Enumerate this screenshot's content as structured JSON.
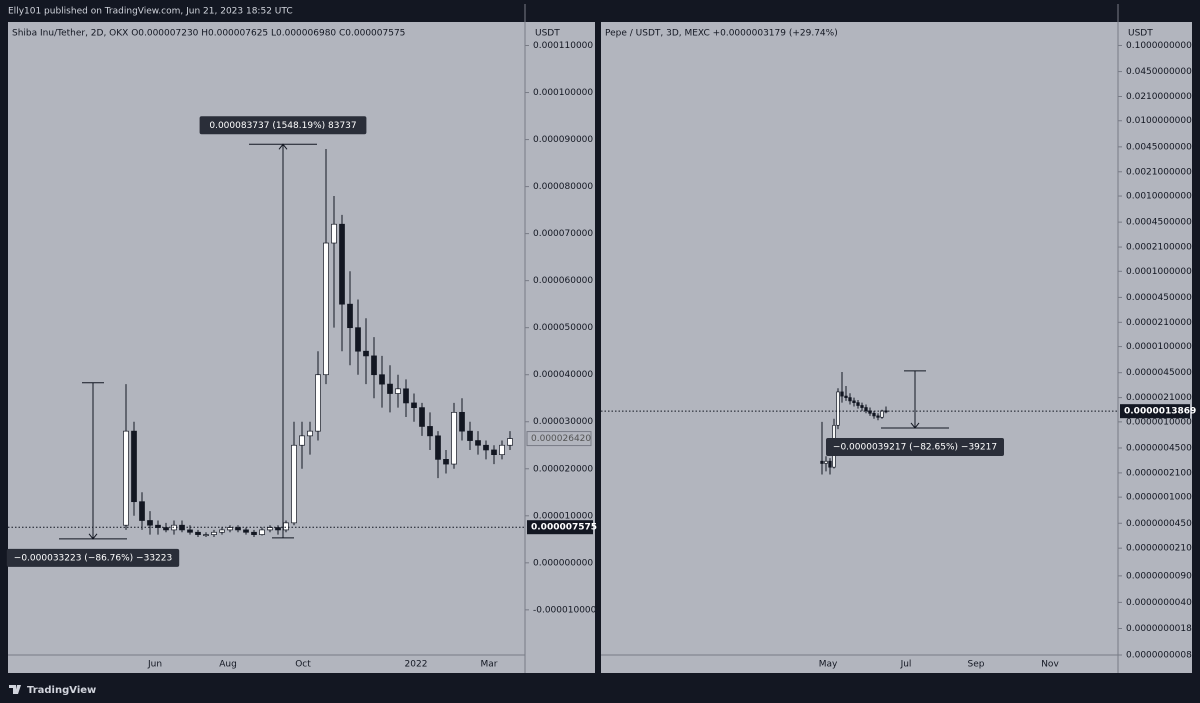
{
  "header": "Elly101 published on TradingView.com, Jun 21, 2023 18:52 UTC",
  "footer": "TradingView",
  "chart_data": [
    {
      "type": "candlestick",
      "title": "Shiba Inu/Tether, 2D, OKX  O0.000007230  H0.000007625  L0.000006980  C0.000007575",
      "axis_label": "USDT",
      "log_scale": false,
      "ylim": [
        -1.96e-05,
        0.000115
      ],
      "yticks": [
        {
          "value": -1e-05,
          "label": "-0.000010000"
        },
        {
          "value": 0,
          "label": "0.000000000"
        },
        {
          "value": 1e-05,
          "label": "0.000010000"
        },
        {
          "value": 2e-05,
          "label": "0.000020000"
        },
        {
          "value": 3e-05,
          "label": "0.000030000"
        },
        {
          "value": 4e-05,
          "label": "0.000040000"
        },
        {
          "value": 5e-05,
          "label": "0.000050000"
        },
        {
          "value": 6e-05,
          "label": "0.000060000"
        },
        {
          "value": 7e-05,
          "label": "0.000070000"
        },
        {
          "value": 8e-05,
          "label": "0.000080000"
        },
        {
          "value": 9e-05,
          "label": "0.000090000"
        },
        {
          "value": 0.0001,
          "label": "0.000100000"
        },
        {
          "value": 0.00011,
          "label": "0.000110000"
        }
      ],
      "xticks": [
        "Jun",
        "Aug",
        "Oct",
        "2022",
        "Mar"
      ],
      "open": [
        8e-06,
        2.8e-05,
        1.3e-05,
        9e-06,
        8e-06,
        7.5e-06,
        7e-06,
        8e-06,
        7e-06,
        6.5e-06,
        6e-06,
        6e-06,
        6.5e-06,
        7e-06,
        7.5e-06,
        7e-06,
        6.5e-06,
        6e-06,
        7e-06,
        7.5e-06,
        7e-06,
        8.5e-06,
        2.5e-05,
        2.7e-05,
        2.8e-05,
        4e-05,
        6.8e-05,
        7.2e-05,
        5.5e-05,
        5e-05,
        4.5e-05,
        4.4e-05,
        4e-05,
        3.8e-05,
        3.6e-05,
        3.7e-05,
        3.4e-05,
        3.3e-05,
        2.9e-05,
        2.7e-05,
        2.2e-05,
        2.1e-05,
        3.2e-05,
        2.8e-05,
        2.6e-05,
        2.5e-05,
        2.4e-05,
        2.3e-05,
        2.5e-05
      ],
      "high": [
        3.8e-05,
        3e-05,
        1.5e-05,
        1.1e-05,
        9e-06,
        8.5e-06,
        9e-06,
        9e-06,
        8e-06,
        7e-06,
        6.5e-06,
        7e-06,
        7.5e-06,
        8e-06,
        8e-06,
        7.5e-06,
        7e-06,
        7.5e-06,
        8e-06,
        8e-06,
        9e-06,
        3e-05,
        3e-05,
        3e-05,
        4.5e-05,
        8.8e-05,
        7.8e-05,
        7.4e-05,
        6.2e-05,
        5.6e-05,
        5.2e-05,
        4.8e-05,
        4.4e-05,
        4.2e-05,
        4e-05,
        3.9e-05,
        3.6e-05,
        3.4e-05,
        3.2e-05,
        2.8e-05,
        2.4e-05,
        3.4e-05,
        3.5e-05,
        3e-05,
        2.8e-05,
        2.6e-05,
        2.5e-05,
        2.6e-05,
        2.8e-05
      ],
      "low": [
        7e-06,
        1e-05,
        7e-06,
        6e-06,
        6e-06,
        6.5e-06,
        6e-06,
        6.5e-06,
        6e-06,
        5.5e-06,
        5.5e-06,
        5.5e-06,
        6e-06,
        6.5e-06,
        6.5e-06,
        6e-06,
        5.5e-06,
        5.8e-06,
        6.5e-06,
        6e-06,
        6.5e-06,
        8e-06,
        2e-05,
        2.3e-05,
        2.6e-05,
        3.8e-05,
        5e-05,
        4.5e-05,
        4.2e-05,
        4e-05,
        3.8e-05,
        3.5e-05,
        3.3e-05,
        3.2e-05,
        3.3e-05,
        3.1e-05,
        3e-05,
        2.7e-05,
        2.4e-05,
        1.8e-05,
        1.9e-05,
        2e-05,
        2.6e-05,
        2.4e-05,
        2.3e-05,
        2.2e-05,
        2.1e-05,
        2.2e-05,
        2.4e-05
      ],
      "close": [
        2.8e-05,
        1.3e-05,
        9e-06,
        8e-06,
        7.5e-06,
        7e-06,
        8e-06,
        7e-06,
        6.5e-06,
        6e-06,
        6e-06,
        6.5e-06,
        7e-06,
        7.5e-06,
        7e-06,
        6.5e-06,
        6e-06,
        7e-06,
        7.5e-06,
        7e-06,
        8.5e-06,
        2.5e-05,
        2.7e-05,
        2.8e-05,
        4e-05,
        6.8e-05,
        7.2e-05,
        5.5e-05,
        5e-05,
        4.5e-05,
        4.4e-05,
        4e-05,
        3.8e-05,
        3.6e-05,
        3.7e-05,
        3.4e-05,
        3.3e-05,
        2.9e-05,
        2.7e-05,
        2.2e-05,
        2.1e-05,
        3.2e-05,
        2.8e-05,
        2.6e-05,
        2.5e-05,
        2.4e-05,
        2.3e-05,
        2.5e-05,
        2.642e-05
      ],
      "last_bar": {
        "value": 2.642e-05,
        "label": "0.000026420"
      },
      "price_line": {
        "value": 7.575e-06,
        "label": "0.000007575"
      },
      "measures": [
        {
          "label": "−0.000033223 (−86.76%) −33223",
          "from": 3.83e-05,
          "to": 5.1e-06
        },
        {
          "label": "0.000083737 (1548.19%) 83737",
          "from": 5.3e-06,
          "to": 8.9e-05
        }
      ]
    },
    {
      "type": "candlestick",
      "title": "Pepe / USDT, 3D, MEXC  +0.0000003179 (+29.74%)",
      "axis_label": "USDT",
      "log_scale": true,
      "ylim": [
        8e-10,
        0.205
      ],
      "yticks": [
        {
          "value": 0.1,
          "label": "0.1000000000"
        },
        {
          "value": 0.045,
          "label": "0.0450000000"
        },
        {
          "value": 0.021,
          "label": "0.0210000000"
        },
        {
          "value": 0.01,
          "label": "0.0100000000"
        },
        {
          "value": 0.0045,
          "label": "0.0045000000"
        },
        {
          "value": 0.0021,
          "label": "0.0021000000"
        },
        {
          "value": 0.001,
          "label": "0.0010000000"
        },
        {
          "value": 0.00045,
          "label": "0.0004500000"
        },
        {
          "value": 0.00021,
          "label": "0.0002100000"
        },
        {
          "value": 0.0001,
          "label": "0.0001000000"
        },
        {
          "value": 4.5e-05,
          "label": "0.0000450000"
        },
        {
          "value": 2.1e-05,
          "label": "0.0000210000"
        },
        {
          "value": 1e-05,
          "label": "0.0000100000"
        },
        {
          "value": 4.5e-06,
          "label": "0.0000045000"
        },
        {
          "value": 2.1e-06,
          "label": "0.0000021000"
        },
        {
          "value": 1e-06,
          "label": "0.0000010000"
        },
        {
          "value": 4.5e-07,
          "label": "0.0000004500"
        },
        {
          "value": 2.1e-07,
          "label": "0.0000002100"
        },
        {
          "value": 1e-07,
          "label": "0.0000001000"
        },
        {
          "value": 4.5e-08,
          "label": "0.0000000450"
        },
        {
          "value": 2.1e-08,
          "label": "0.0000000210"
        },
        {
          "value": 9e-09,
          "label": "0.0000000090"
        },
        {
          "value": 4e-09,
          "label": "0.0000000040"
        },
        {
          "value": 1.8e-09,
          "label": "0.0000000018"
        },
        {
          "value": 8e-10,
          "label": "0.0000000008"
        }
      ],
      "xticks": [
        "May",
        "Jul",
        "Sep",
        "Nov"
      ],
      "open": [
        3e-07,
        2.8e-07,
        3e-07,
        2.5e-07,
        9e-07,
        2.5e-06,
        2.2e-06,
        2.1e-06,
        1.9e-06,
        1.8e-06,
        1.65e-06,
        1.55e-06,
        1.4e-06,
        1.3e-06,
        1.2e-06,
        1.15e-06,
        1.4e-06
      ],
      "high": [
        1e-06,
        3.5e-07,
        3.3e-07,
        1.1e-06,
        2.8e-06,
        4.6e-06,
        3e-06,
        2.4e-06,
        2.1e-06,
        1.95e-06,
        1.8e-06,
        1.7e-06,
        1.55e-06,
        1.4e-06,
        1.3e-06,
        1.45e-06,
        1.6e-06
      ],
      "low": [
        2e-07,
        2.2e-07,
        2e-07,
        2.4e-07,
        8e-07,
        1.8e-06,
        1.9e-06,
        1.7e-06,
        1.6e-06,
        1.5e-06,
        1.4e-06,
        1.3e-06,
        1.2e-06,
        1.1e-06,
        1.05e-06,
        1.1e-06,
        1.3e-06
      ],
      "close": [
        2.8e-07,
        3e-07,
        2.5e-07,
        9e-07,
        2.5e-06,
        2.2e-06,
        2.1e-06,
        1.9e-06,
        1.8e-06,
        1.65e-06,
        1.55e-06,
        1.4e-06,
        1.3e-06,
        1.2e-06,
        1.15e-06,
        1.4e-06,
        1.3869e-06
      ],
      "price_line": {
        "value": 1.3869e-06,
        "label": "0.0000013869"
      },
      "measures": [
        {
          "label": "−0.0000039217 (−82.65%) −39217",
          "from": 4.75e-06,
          "to": 8.3e-07
        }
      ]
    }
  ]
}
